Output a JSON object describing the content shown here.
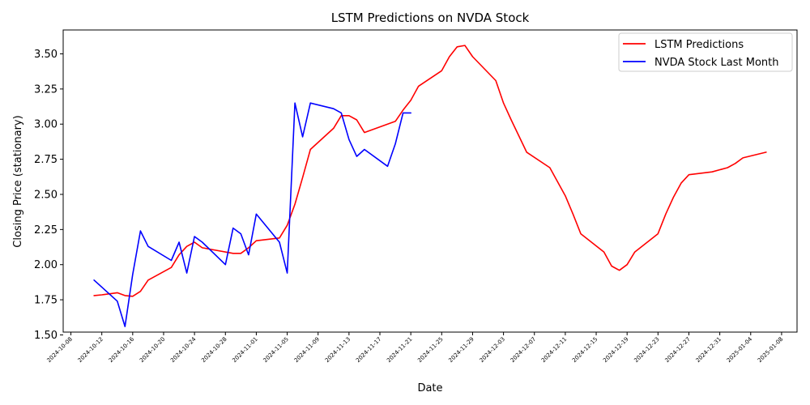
{
  "chart_data": {
    "type": "line",
    "title": "LSTM Predictions on NVDA Stock",
    "xlabel": "Date",
    "ylabel": "Closing Price (stationary)",
    "xlim": [
      "2024-10-07",
      "2025-01-10"
    ],
    "ylim": [
      1.52,
      3.67
    ],
    "y_ticks": [
      1.5,
      1.75,
      2.0,
      2.25,
      2.5,
      2.75,
      3.0,
      3.25,
      3.5
    ],
    "y_tick_labels": [
      "1.50",
      "1.75",
      "2.00",
      "2.25",
      "2.50",
      "2.75",
      "3.00",
      "3.25",
      "3.50"
    ],
    "x_ticks": [
      "2024-10-08",
      "2024-10-12",
      "2024-10-16",
      "2024-10-20",
      "2024-10-24",
      "2024-10-28",
      "2024-11-01",
      "2024-11-05",
      "2024-11-09",
      "2024-11-13",
      "2024-11-17",
      "2024-11-21",
      "2024-11-25",
      "2024-11-29",
      "2024-12-03",
      "2024-12-07",
      "2024-12-11",
      "2024-12-15",
      "2024-12-19",
      "2024-12-23",
      "2024-12-27",
      "2024-12-31",
      "2025-01-04",
      "2025-01-08"
    ],
    "grid": false,
    "legend_position": "top-right",
    "series": [
      {
        "name": "LSTM Predictions",
        "color": "#ff0000",
        "points": [
          [
            "2024-10-11",
            1.78
          ],
          [
            "2024-10-12",
            1.785
          ],
          [
            "2024-10-14",
            1.8
          ],
          [
            "2024-10-15",
            1.78
          ],
          [
            "2024-10-16",
            1.775
          ],
          [
            "2024-10-17",
            1.81
          ],
          [
            "2024-10-18",
            1.89
          ],
          [
            "2024-10-21",
            1.98
          ],
          [
            "2024-10-22",
            2.07
          ],
          [
            "2024-10-23",
            2.13
          ],
          [
            "2024-10-24",
            2.16
          ],
          [
            "2024-10-25",
            2.12
          ],
          [
            "2024-10-26",
            2.11
          ],
          [
            "2024-10-29",
            2.08
          ],
          [
            "2024-10-30",
            2.08
          ],
          [
            "2024-10-31",
            2.12
          ],
          [
            "2024-11-01",
            2.17
          ],
          [
            "2024-11-04",
            2.19
          ],
          [
            "2024-11-05",
            2.28
          ],
          [
            "2024-11-06",
            2.43
          ],
          [
            "2024-11-07",
            2.62
          ],
          [
            "2024-11-08",
            2.82
          ],
          [
            "2024-11-11",
            2.97
          ],
          [
            "2024-11-12",
            3.06
          ],
          [
            "2024-11-13",
            3.06
          ],
          [
            "2024-11-14",
            3.03
          ],
          [
            "2024-11-15",
            2.94
          ],
          [
            "2024-11-19",
            3.02
          ],
          [
            "2024-11-20",
            3.1
          ],
          [
            "2024-11-21",
            3.17
          ],
          [
            "2024-11-22",
            3.27
          ],
          [
            "2024-11-25",
            3.38
          ],
          [
            "2024-11-26",
            3.48
          ],
          [
            "2024-11-27",
            3.55
          ],
          [
            "2024-11-28",
            3.56
          ],
          [
            "2024-11-29",
            3.48
          ],
          [
            "2024-12-02",
            3.31
          ],
          [
            "2024-12-03",
            3.15
          ],
          [
            "2024-12-04",
            3.03
          ],
          [
            "2024-12-06",
            2.8
          ],
          [
            "2024-12-09",
            2.69
          ],
          [
            "2024-12-11",
            2.49
          ],
          [
            "2024-12-12",
            2.36
          ],
          [
            "2024-12-13",
            2.22
          ],
          [
            "2024-12-16",
            2.09
          ],
          [
            "2024-12-17",
            1.99
          ],
          [
            "2024-12-18",
            1.96
          ],
          [
            "2024-12-19",
            2.0
          ],
          [
            "2024-12-20",
            2.09
          ],
          [
            "2024-12-23",
            2.22
          ],
          [
            "2024-12-24",
            2.36
          ],
          [
            "2024-12-25",
            2.48
          ],
          [
            "2024-12-26",
            2.58
          ],
          [
            "2024-12-27",
            2.64
          ],
          [
            "2024-12-30",
            2.66
          ],
          [
            "2025-01-01",
            2.69
          ],
          [
            "2025-01-02",
            2.72
          ],
          [
            "2025-01-03",
            2.76
          ],
          [
            "2025-01-06",
            2.8
          ]
        ]
      },
      {
        "name": "NVDA Stock Last Month",
        "color": "#0000ff",
        "points": [
          [
            "2024-10-11",
            1.89
          ],
          [
            "2024-10-14",
            1.74
          ],
          [
            "2024-10-15",
            1.56
          ],
          [
            "2024-10-16",
            1.93
          ],
          [
            "2024-10-17",
            2.24
          ],
          [
            "2024-10-18",
            2.13
          ],
          [
            "2024-10-21",
            2.03
          ],
          [
            "2024-10-22",
            2.16
          ],
          [
            "2024-10-23",
            1.94
          ],
          [
            "2024-10-24",
            2.2
          ],
          [
            "2024-10-25",
            2.16
          ],
          [
            "2024-10-28",
            2.0
          ],
          [
            "2024-10-29",
            2.26
          ],
          [
            "2024-10-30",
            2.22
          ],
          [
            "2024-10-31",
            2.07
          ],
          [
            "2024-11-01",
            2.36
          ],
          [
            "2024-11-04",
            2.16
          ],
          [
            "2024-11-05",
            1.94
          ],
          [
            "2024-11-06",
            3.15
          ],
          [
            "2024-11-07",
            2.91
          ],
          [
            "2024-11-08",
            3.15
          ],
          [
            "2024-11-11",
            3.11
          ],
          [
            "2024-11-12",
            3.08
          ],
          [
            "2024-11-13",
            2.89
          ],
          [
            "2024-11-14",
            2.77
          ],
          [
            "2024-11-15",
            2.82
          ],
          [
            "2024-11-18",
            2.7
          ],
          [
            "2024-11-19",
            2.86
          ],
          [
            "2024-11-20",
            3.08
          ],
          [
            "2024-11-21",
            3.08
          ]
        ]
      }
    ]
  }
}
